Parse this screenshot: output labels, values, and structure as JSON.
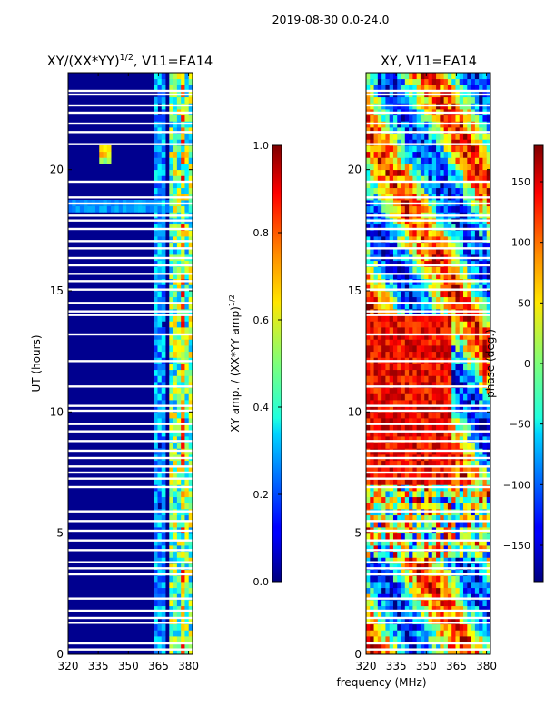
{
  "figure_title": "2019-08-30 0.0-24.0",
  "shared_xlabel": "frequency (MHz)",
  "chart_data": [
    {
      "type": "heatmap",
      "title_main": "XY/(XX*YY)",
      "title_sup": "1/2",
      "title_rest": ", V11=EA14",
      "xlabel": "",
      "ylabel": "UT (hours)",
      "x_ticks": [
        320,
        335,
        350,
        365,
        380
      ],
      "xlim": [
        320,
        382
      ],
      "y_ticks": [
        0,
        5,
        10,
        15,
        20
      ],
      "ylim": [
        0,
        24
      ],
      "colorbar": {
        "label_main": "XY amp. / (XX*YY amp)",
        "label_sup": "1/2",
        "ticks": [
          "0.0",
          "0.2",
          "0.4",
          "0.6",
          "0.8",
          "1.0"
        ],
        "range": [
          0.0,
          1.0
        ],
        "colormap": "jet"
      }
    },
    {
      "type": "heatmap",
      "title_main": "XY, V11=EA14",
      "title_sup": "",
      "title_rest": "",
      "xlabel": "frequency (MHz)",
      "ylabel": "",
      "x_ticks": [
        320,
        335,
        350,
        365,
        380
      ],
      "xlim": [
        320,
        382
      ],
      "y_ticks": [
        0,
        5,
        10,
        15,
        20
      ],
      "ylim": [
        0,
        24
      ],
      "colorbar": {
        "label_main": "phase (deg.)",
        "label_sup": "",
        "ticks": [
          "−150",
          "−100",
          "−50",
          "0",
          "50",
          "100",
          "150"
        ],
        "range": [
          -180,
          180
        ],
        "colormap": "jet"
      }
    }
  ],
  "flagged_hours": [
    0.2,
    0.45,
    1.3,
    1.5,
    1.8,
    2.3,
    3.3,
    3.55,
    3.8,
    4.3,
    4.7,
    5.1,
    5.5,
    5.9,
    6.9,
    7.25,
    7.5,
    7.75,
    8.1,
    8.4,
    8.8,
    9.2,
    9.5,
    10.05,
    10.25,
    11.05,
    12.1,
    13.2,
    14.0,
    14.15,
    14.5,
    15.05,
    15.4,
    15.7,
    16.05,
    16.35,
    16.75,
    17.05,
    17.55,
    17.9,
    18.1,
    18.6,
    18.85,
    19.5,
    21.05,
    21.55,
    21.9,
    22.35,
    22.65,
    23.1,
    23.25
  ]
}
